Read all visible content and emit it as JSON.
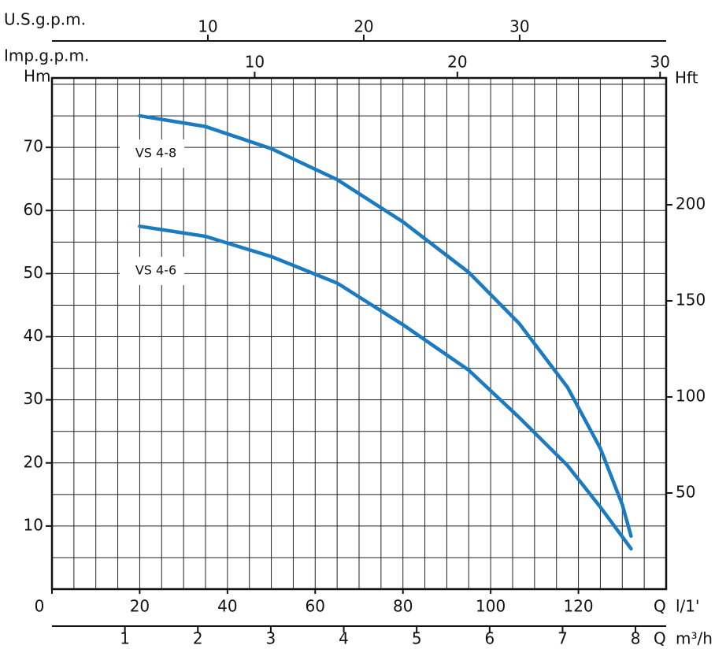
{
  "chart_data": {
    "type": "line",
    "x_label": "Q",
    "x_unit": "l/1'",
    "y_label": "Hm",
    "y2_label": "Hft",
    "x": [
      20,
      35,
      50,
      65,
      80,
      95,
      106.5,
      117.5,
      125,
      130,
      132
    ],
    "series": [
      {
        "name": "VS 4-8",
        "color": "#1a7bc0",
        "values": [
          75,
          73.3,
          69.8,
          64.9,
          58.2,
          50.2,
          42.1,
          32,
          22.3,
          13.4,
          8.4
        ]
      },
      {
        "name": "VS 4-6",
        "color": "#1a7bc0",
        "values": [
          57.5,
          55.9,
          52.7,
          48.5,
          41.9,
          34.7,
          27.2,
          19.6,
          13,
          8.3,
          6.4
        ]
      }
    ],
    "xlim": [
      0,
      140
    ],
    "xticks": [
      0,
      20,
      40,
      60,
      80,
      100,
      120
    ],
    "ylim": [
      0,
      81
    ],
    "yticks": [
      10,
      20,
      30,
      40,
      50,
      60,
      70
    ],
    "y2lim": [
      0,
      266
    ],
    "y2ticks": [
      50,
      100,
      150,
      200
    ],
    "xgrid": [
      0,
      5,
      10,
      15,
      20,
      25,
      30,
      35,
      40,
      45,
      50,
      55,
      60,
      65,
      70,
      75,
      80,
      85,
      90,
      95,
      100,
      105,
      110,
      115,
      120,
      125,
      130,
      135,
      140
    ],
    "ygrid": [
      0,
      5,
      10,
      15,
      20,
      25,
      30,
      35,
      40,
      45,
      50,
      55,
      60,
      65,
      70,
      75,
      80
    ],
    "secondary_x_axes": [
      {
        "label": "U.S.g.p.m.",
        "xlim": [
          0,
          39.4
        ],
        "xticks": [
          10,
          20,
          30
        ]
      },
      {
        "label": "Imp.g.p.m.",
        "xlim": [
          0,
          30.3
        ],
        "xticks": [
          10,
          20,
          30
        ]
      },
      {
        "label": "Q",
        "unit": "m³/h",
        "xlim": [
          0,
          8.42
        ],
        "xticks": [
          1,
          2,
          3,
          4,
          5,
          6,
          7,
          8
        ]
      }
    ]
  }
}
